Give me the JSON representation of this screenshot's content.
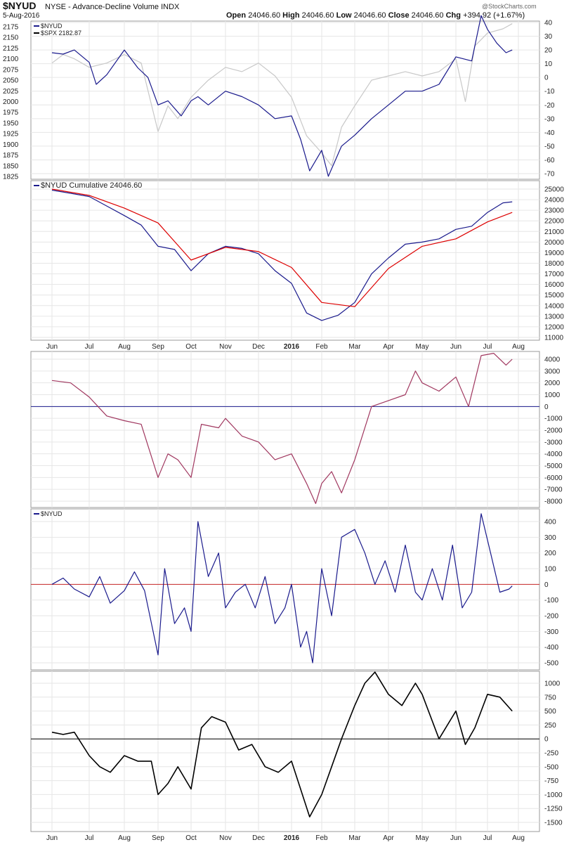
{
  "header": {
    "symbol": "$NYUD",
    "description": "NYSE - Advance-Decline Volume INDX",
    "watermark": "@StockCharts.com",
    "date": "5-Aug-2016",
    "open_label": "Open",
    "open": "24046.60",
    "high_label": "High",
    "high": "24046.60",
    "low_label": "Low",
    "low": "24046.60",
    "close_label": "Close",
    "close": "24046.60",
    "chg_label": "Chg",
    "chg": "+394.92 (+1.67%)"
  },
  "months": [
    "Jun",
    "Jul",
    "Aug",
    "Sep",
    "Oct",
    "Nov",
    "Dec",
    "2016",
    "Feb",
    "Mar",
    "Apr",
    "May",
    "Jun",
    "Jul",
    "Aug"
  ],
  "chart_data": [
    {
      "type": "line",
      "legend": [
        "$NYUD",
        "$SPX 2182.87"
      ],
      "left_ticks": [
        2175,
        2150,
        2125,
        2100,
        2075,
        2050,
        2025,
        2000,
        1975,
        1950,
        1925,
        1900,
        1875,
        1850,
        1825
      ],
      "right_ticks": [
        40,
        30,
        20,
        10,
        0,
        -10,
        -20,
        -30,
        -40,
        -50,
        -60,
        -70
      ],
      "series": [
        {
          "name": "$NYUD",
          "color": "#1a1a8c",
          "axis": "right",
          "points": [
            [
              0,
              18
            ],
            [
              0.3,
              17
            ],
            [
              0.6,
              20
            ],
            [
              1,
              11
            ],
            [
              1.2,
              -5
            ],
            [
              1.5,
              2
            ],
            [
              2,
              20
            ],
            [
              2.4,
              7
            ],
            [
              2.7,
              0
            ],
            [
              3,
              -20
            ],
            [
              3.3,
              -17
            ],
            [
              3.7,
              -28
            ],
            [
              4,
              -17
            ],
            [
              4.2,
              -14
            ],
            [
              4.5,
              -20
            ],
            [
              5,
              -10
            ],
            [
              5.5,
              -14
            ],
            [
              6,
              -20
            ],
            [
              6.5,
              -30
            ],
            [
              7,
              -28
            ],
            [
              7.3,
              -45
            ],
            [
              7.6,
              -68
            ],
            [
              8,
              -53
            ],
            [
              8.2,
              -72
            ],
            [
              8.6,
              -50
            ],
            [
              9,
              -42
            ],
            [
              9.5,
              -30
            ],
            [
              10,
              -20
            ],
            [
              10.5,
              -10
            ],
            [
              11,
              -10
            ],
            [
              11.5,
              -5
            ],
            [
              12,
              15
            ],
            [
              12.5,
              12
            ],
            [
              12.8,
              45
            ],
            [
              13,
              35
            ],
            [
              13.3,
              25
            ],
            [
              13.6,
              18
            ],
            [
              13.8,
              20
            ]
          ]
        },
        {
          "name": "$SPX 2182.87",
          "color": "#c8c8c8",
          "axis": "left",
          "points": [
            [
              0,
              2090
            ],
            [
              0.3,
              2110
            ],
            [
              0.6,
              2100
            ],
            [
              1,
              2080
            ],
            [
              1.5,
              2090
            ],
            [
              2,
              2110
            ],
            [
              2.5,
              2090
            ],
            [
              3,
              1930
            ],
            [
              3.3,
              1990
            ],
            [
              3.6,
              1960
            ],
            [
              4,
              2010
            ],
            [
              4.5,
              2050
            ],
            [
              5,
              2080
            ],
            [
              5.5,
              2070
            ],
            [
              6,
              2090
            ],
            [
              6.5,
              2060
            ],
            [
              7,
              2010
            ],
            [
              7.5,
              1920
            ],
            [
              8,
              1880
            ],
            [
              8.3,
              1850
            ],
            [
              8.6,
              1940
            ],
            [
              9,
              1990
            ],
            [
              9.5,
              2050
            ],
            [
              10,
              2060
            ],
            [
              10.5,
              2070
            ],
            [
              11,
              2060
            ],
            [
              11.5,
              2070
            ],
            [
              12,
              2100
            ],
            [
              12.3,
              2000
            ],
            [
              12.6,
              2130
            ],
            [
              13,
              2160
            ],
            [
              13.5,
              2170
            ],
            [
              13.8,
              2182
            ]
          ]
        }
      ]
    },
    {
      "type": "line",
      "legend": [
        "$NYUD Cumulative 24046.60"
      ],
      "right_ticks": [
        25000,
        24000,
        23000,
        22000,
        21000,
        20000,
        19000,
        18000,
        17000,
        16000,
        15000,
        14000,
        13000,
        12000,
        11000
      ],
      "series": [
        {
          "name": "$NYUD Cumulative 24046.60",
          "color": "#1a1a8c",
          "points": [
            [
              0,
              24900
            ],
            [
              0.5,
              24600
            ],
            [
              1,
              24300
            ],
            [
              1.5,
              23400
            ],
            [
              2,
              22500
            ],
            [
              2.5,
              21600
            ],
            [
              3,
              19600
            ],
            [
              3.5,
              19300
            ],
            [
              4,
              17300
            ],
            [
              4.5,
              18900
            ],
            [
              5,
              19600
            ],
            [
              5.5,
              19400
            ],
            [
              6,
              18900
            ],
            [
              6.5,
              17300
            ],
            [
              7,
              16100
            ],
            [
              7.5,
              13300
            ],
            [
              8,
              12600
            ],
            [
              8.5,
              13100
            ],
            [
              9,
              14300
            ],
            [
              9.5,
              17000
            ],
            [
              10,
              18500
            ],
            [
              10.5,
              19800
            ],
            [
              11,
              20000
            ],
            [
              11.5,
              20300
            ],
            [
              12,
              21200
            ],
            [
              12.5,
              21500
            ],
            [
              13,
              22800
            ],
            [
              13.5,
              23700
            ],
            [
              13.8,
              23800
            ]
          ]
        },
        {
          "name": "MA",
          "color": "#dd0000",
          "points": [
            [
              0,
              25000
            ],
            [
              1,
              24400
            ],
            [
              2,
              23200
            ],
            [
              3,
              21800
            ],
            [
              4,
              18300
            ],
            [
              5,
              19500
            ],
            [
              6,
              19100
            ],
            [
              7,
              17600
            ],
            [
              8,
              14300
            ],
            [
              9,
              13900
            ],
            [
              10,
              17500
            ],
            [
              11,
              19600
            ],
            [
              12,
              20300
            ],
            [
              13,
              21900
            ],
            [
              13.8,
              22800
            ]
          ]
        }
      ]
    },
    {
      "type": "line",
      "right_ticks": [
        4000,
        3000,
        2000,
        1000,
        0,
        -1000,
        -2000,
        -3000,
        -4000,
        -5000,
        -6000,
        -7000,
        -8000
      ],
      "series": [
        {
          "color": "#a0375f",
          "points": [
            [
              0,
              2200
            ],
            [
              0.5,
              2000
            ],
            [
              1,
              800
            ],
            [
              1.5,
              -800
            ],
            [
              2,
              -1200
            ],
            [
              2.5,
              -1500
            ],
            [
              3,
              -6000
            ],
            [
              3.3,
              -4000
            ],
            [
              3.6,
              -4500
            ],
            [
              4,
              -6000
            ],
            [
              4.3,
              -1500
            ],
            [
              4.8,
              -1800
            ],
            [
              5,
              -1000
            ],
            [
              5.5,
              -2500
            ],
            [
              6,
              -3000
            ],
            [
              6.5,
              -4500
            ],
            [
              7,
              -4000
            ],
            [
              7.5,
              -6500
            ],
            [
              7.8,
              -8200
            ],
            [
              8,
              -6500
            ],
            [
              8.3,
              -5500
            ],
            [
              8.6,
              -7300
            ],
            [
              9,
              -4500
            ],
            [
              9.5,
              0
            ],
            [
              10,
              500
            ],
            [
              10.5,
              1000
            ],
            [
              10.8,
              3000
            ],
            [
              11,
              2000
            ],
            [
              11.5,
              1300
            ],
            [
              12,
              2500
            ],
            [
              12.4,
              0
            ],
            [
              12.8,
              4300
            ],
            [
              13.2,
              4500
            ],
            [
              13.6,
              3500
            ],
            [
              13.8,
              4000
            ]
          ]
        }
      ]
    },
    {
      "type": "line",
      "legend": [
        "$NYUD"
      ],
      "right_ticks": [
        400,
        300,
        200,
        100,
        0,
        -100,
        -200,
        -300,
        -400,
        -500
      ],
      "series": [
        {
          "color": "#1a1a8c",
          "points": [
            [
              0,
              0
            ],
            [
              0.3,
              40
            ],
            [
              0.6,
              -30
            ],
            [
              1,
              -80
            ],
            [
              1.3,
              50
            ],
            [
              1.6,
              -120
            ],
            [
              2,
              -40
            ],
            [
              2.3,
              80
            ],
            [
              2.6,
              -40
            ],
            [
              3,
              -450
            ],
            [
              3.2,
              100
            ],
            [
              3.5,
              -250
            ],
            [
              3.8,
              -150
            ],
            [
              4,
              -300
            ],
            [
              4.2,
              400
            ],
            [
              4.5,
              50
            ],
            [
              4.8,
              200
            ],
            [
              5,
              -150
            ],
            [
              5.3,
              -50
            ],
            [
              5.6,
              0
            ],
            [
              5.9,
              -150
            ],
            [
              6.2,
              50
            ],
            [
              6.5,
              -250
            ],
            [
              6.8,
              -150
            ],
            [
              7,
              0
            ],
            [
              7.3,
              -400
            ],
            [
              7.5,
              -300
            ],
            [
              7.7,
              -500
            ],
            [
              8,
              100
            ],
            [
              8.3,
              -200
            ],
            [
              8.6,
              300
            ],
            [
              9,
              350
            ],
            [
              9.3,
              200
            ],
            [
              9.6,
              0
            ],
            [
              9.9,
              150
            ],
            [
              10.2,
              -50
            ],
            [
              10.5,
              250
            ],
            [
              10.8,
              -50
            ],
            [
              11,
              -100
            ],
            [
              11.3,
              100
            ],
            [
              11.6,
              -100
            ],
            [
              11.9,
              250
            ],
            [
              12.2,
              -150
            ],
            [
              12.5,
              -50
            ],
            [
              12.8,
              450
            ],
            [
              13.1,
              200
            ],
            [
              13.4,
              -50
            ],
            [
              13.7,
              -30
            ],
            [
              13.8,
              -10
            ]
          ]
        }
      ]
    },
    {
      "type": "line",
      "right_ticks": [
        1000,
        750,
        500,
        250,
        0,
        -250,
        -500,
        -750,
        -1000,
        -1250,
        -1500
      ],
      "series": [
        {
          "color": "#000000",
          "points": [
            [
              0,
              120
            ],
            [
              0.3,
              80
            ],
            [
              0.6,
              120
            ],
            [
              1,
              -300
            ],
            [
              1.3,
              -500
            ],
            [
              1.6,
              -600
            ],
            [
              2,
              -300
            ],
            [
              2.4,
              -400
            ],
            [
              2.8,
              -400
            ],
            [
              3,
              -1000
            ],
            [
              3.3,
              -800
            ],
            [
              3.6,
              -500
            ],
            [
              4,
              -900
            ],
            [
              4.3,
              200
            ],
            [
              4.6,
              400
            ],
            [
              5,
              300
            ],
            [
              5.4,
              -200
            ],
            [
              5.8,
              -100
            ],
            [
              6.2,
              -500
            ],
            [
              6.6,
              -600
            ],
            [
              7,
              -400
            ],
            [
              7.3,
              -900
            ],
            [
              7.6,
              -1400
            ],
            [
              8,
              -1000
            ],
            [
              8.3,
              -500
            ],
            [
              8.6,
              0
            ],
            [
              9,
              600
            ],
            [
              9.3,
              1000
            ],
            [
              9.6,
              1200
            ],
            [
              10,
              800
            ],
            [
              10.4,
              600
            ],
            [
              10.8,
              1000
            ],
            [
              11,
              800
            ],
            [
              11.5,
              0
            ],
            [
              12,
              500
            ],
            [
              12.3,
              -100
            ],
            [
              12.6,
              200
            ],
            [
              13,
              800
            ],
            [
              13.4,
              750
            ],
            [
              13.8,
              500
            ]
          ]
        }
      ]
    }
  ]
}
